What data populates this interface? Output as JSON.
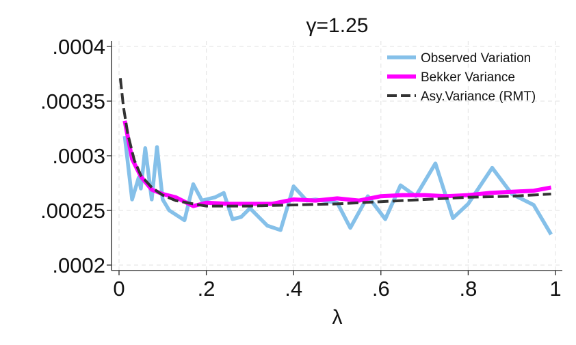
{
  "chart_data": {
    "type": "line",
    "title": "γ=1.25",
    "xlabel": "λ",
    "ylabel": "",
    "xlim": [
      0,
      1
    ],
    "ylim": [
      0.000195,
      0.000405
    ],
    "x_ticks": [
      0,
      0.2,
      0.4,
      0.6,
      0.8,
      1
    ],
    "x_tick_labels": [
      "0",
      ".2",
      ".4",
      ".6",
      ".8",
      "1"
    ],
    "y_ticks": [
      0.0002,
      0.00025,
      0.0003,
      0.00035,
      0.0004
    ],
    "y_tick_labels": [
      ".0002",
      ".00025",
      ".0003",
      ".00035",
      ".0004"
    ],
    "grid": true,
    "legend_position": "top-right",
    "series": [
      {
        "name": "Observed Variation",
        "color": "#85c0e9",
        "style": "solid",
        "points": [
          [
            0.013,
            0.000318
          ],
          [
            0.03,
            0.00026
          ],
          [
            0.045,
            0.00028
          ],
          [
            0.05,
            0.00027
          ],
          [
            0.06,
            0.000307
          ],
          [
            0.075,
            0.00026
          ],
          [
            0.087,
            0.000308
          ],
          [
            0.1,
            0.00026
          ],
          [
            0.115,
            0.00025
          ],
          [
            0.15,
            0.000241
          ],
          [
            0.17,
            0.000274
          ],
          [
            0.19,
            0.000259
          ],
          [
            0.22,
            0.000262
          ],
          [
            0.24,
            0.000266
          ],
          [
            0.26,
            0.000242
          ],
          [
            0.28,
            0.000244
          ],
          [
            0.3,
            0.000252
          ],
          [
            0.34,
            0.000236
          ],
          [
            0.37,
            0.000232
          ],
          [
            0.4,
            0.000272
          ],
          [
            0.43,
            0.000259
          ],
          [
            0.45,
            0.00026
          ],
          [
            0.5,
            0.000257
          ],
          [
            0.53,
            0.000234
          ],
          [
            0.57,
            0.000263
          ],
          [
            0.61,
            0.000242
          ],
          [
            0.645,
            0.000273
          ],
          [
            0.68,
            0.000263
          ],
          [
            0.725,
            0.000293
          ],
          [
            0.765,
            0.000243
          ],
          [
            0.8,
            0.000256
          ],
          [
            0.855,
            0.000289
          ],
          [
            0.9,
            0.000265
          ],
          [
            0.95,
            0.000255
          ],
          [
            0.99,
            0.000228
          ]
        ]
      },
      {
        "name": "Bekker Variance",
        "color": "#ff00ff",
        "style": "solid",
        "points": [
          [
            0.013,
            0.000332
          ],
          [
            0.03,
            0.000297
          ],
          [
            0.05,
            0.000281
          ],
          [
            0.075,
            0.000269
          ],
          [
            0.1,
            0.000265
          ],
          [
            0.13,
            0.000262
          ],
          [
            0.17,
            0.000254
          ],
          [
            0.2,
            0.000257
          ],
          [
            0.25,
            0.000256
          ],
          [
            0.3,
            0.000256
          ],
          [
            0.35,
            0.000256
          ],
          [
            0.4,
            0.00026
          ],
          [
            0.45,
            0.000259
          ],
          [
            0.5,
            0.000261
          ],
          [
            0.55,
            0.000259
          ],
          [
            0.6,
            0.000263
          ],
          [
            0.65,
            0.000264
          ],
          [
            0.7,
            0.000264
          ],
          [
            0.75,
            0.000263
          ],
          [
            0.8,
            0.000264
          ],
          [
            0.85,
            0.000266
          ],
          [
            0.9,
            0.000267
          ],
          [
            0.95,
            0.000268
          ],
          [
            0.99,
            0.000271
          ]
        ]
      },
      {
        "name": "Asy.Variance (RMT)",
        "color": "#333333",
        "style": "dashed",
        "points": [
          [
            0.003,
            0.000371
          ],
          [
            0.01,
            0.000345
          ],
          [
            0.02,
            0.00032
          ],
          [
            0.035,
            0.000296
          ],
          [
            0.05,
            0.000282
          ],
          [
            0.075,
            0.000271
          ],
          [
            0.1,
            0.000264
          ],
          [
            0.13,
            0.000259
          ],
          [
            0.17,
            0.000256
          ],
          [
            0.2,
            0.000254
          ],
          [
            0.3,
            0.000254
          ],
          [
            0.4,
            0.000255
          ],
          [
            0.5,
            0.000256
          ],
          [
            0.6,
            0.000258
          ],
          [
            0.7,
            0.00026
          ],
          [
            0.8,
            0.000262
          ],
          [
            0.9,
            0.000263
          ],
          [
            0.99,
            0.000265
          ]
        ]
      }
    ]
  }
}
